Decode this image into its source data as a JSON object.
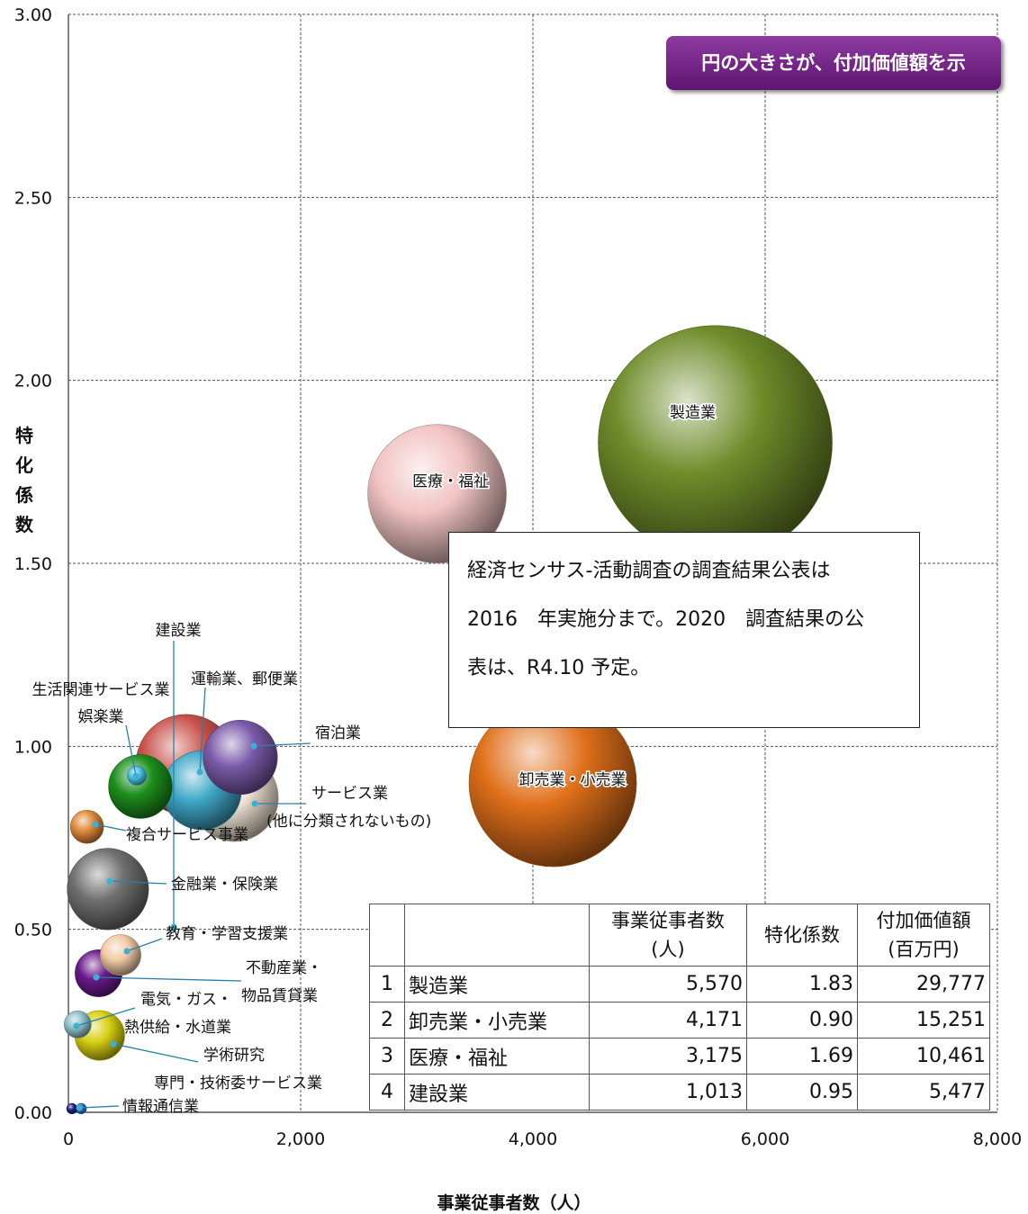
{
  "chart_data": {
    "type": "bubble",
    "xlabel": "事業従事者数（人）",
    "ylabel": "特化係数",
    "xlim": [
      0,
      8000
    ],
    "ylim": [
      0,
      3
    ],
    "x_ticks": [
      "0",
      "2,000",
      "4,000",
      "6,000",
      "8,000"
    ],
    "y_ticks": [
      "0.00",
      "0.50",
      "1.00",
      "1.50",
      "2.00",
      "2.50",
      "3.00"
    ],
    "grid": true,
    "points": [
      {
        "name": "製造業",
        "x": 5570,
        "y": 1.83,
        "size": 29777,
        "color": "#6f8c2a"
      },
      {
        "name": "卸売業・小売業",
        "x": 4171,
        "y": 0.9,
        "size": 15251,
        "color": "#e0701a"
      },
      {
        "name": "医療・福祉",
        "x": 3175,
        "y": 1.69,
        "size": 10461,
        "color": "#f2c4c4"
      },
      {
        "name": "建設業",
        "x": 1013,
        "y": 0.95,
        "size": 5477,
        "color": "#c8504a"
      },
      {
        "name": "宿泊業",
        "x": 1480,
        "y": 0.97,
        "size": 3000,
        "color": "#7a5aa8"
      },
      {
        "name": "運輸業、郵便業",
        "x": 1150,
        "y": 0.88,
        "size": 3400,
        "color": "#3fa7c8"
      },
      {
        "name": "サービス業\n(他に分類されないもの)",
        "x": 1430,
        "y": 0.86,
        "size": 4200,
        "color": "#efe3d3"
      },
      {
        "name": "娯楽業",
        "x": 620,
        "y": 0.89,
        "size": 2200,
        "color": "#1c8f1c"
      },
      {
        "name": "生活関連サービス業",
        "x": 590,
        "y": 0.92,
        "size": 200,
        "color": "#46bfe0"
      },
      {
        "name": "複合サービス事業",
        "x": 160,
        "y": 0.78,
        "size": 600,
        "color": "#e08a3a"
      },
      {
        "name": "金融業・保険業",
        "x": 340,
        "y": 0.61,
        "size": 3600,
        "color": "#707070"
      },
      {
        "name": "教育・学習支援業",
        "x": 450,
        "y": 0.43,
        "size": 900,
        "color": "#f1caa4"
      },
      {
        "name": "不動産業・\n物品賃貸業",
        "x": 260,
        "y": 0.38,
        "size": 1200,
        "color": "#6a1a8a"
      },
      {
        "name": "電気・ガス・\n熱供給・水道業",
        "x": 80,
        "y": 0.24,
        "size": 400,
        "color": "#8ec0c8"
      },
      {
        "name": "学術研究\n専門・技術委サービス業",
        "x": 270,
        "y": 0.21,
        "size": 1350,
        "color": "#d8d012"
      },
      {
        "name": "情報通信業",
        "x": 110,
        "y": 0.01,
        "size": 60,
        "color": "#1f6fbf"
      },
      {
        "name": "",
        "x": 30,
        "y": 0.01,
        "size": 60,
        "color": "#1a237e"
      }
    ]
  },
  "note_label": "円の大きさが、付加価値額を示",
  "textbox": {
    "line1": "経済センサス-活動調査の調査結果公表は",
    "line2": "2016　年実施分まで。2020　調査結果の公",
    "line3": "表は、R4.10 予定。"
  },
  "table": {
    "headers": [
      "",
      "",
      "事業従事者数\n(人)",
      "特化係数",
      "付加価値額\n(百万円)"
    ],
    "rows": [
      [
        "1",
        "製造業",
        "5,570",
        "1.83",
        "29,777"
      ],
      [
        "2",
        "卸売業・小売業",
        "4,171",
        "0.90",
        "15,251"
      ],
      [
        "3",
        "医療・福祉",
        "3,175",
        "1.69",
        "10,461"
      ],
      [
        "4",
        "建設業",
        "1,013",
        "0.95",
        "5,477"
      ]
    ]
  }
}
